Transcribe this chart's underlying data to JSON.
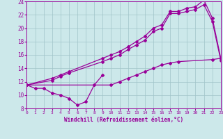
{
  "bg_color": "#cce8ea",
  "line_color": "#990099",
  "xlim": [
    0,
    23
  ],
  "ylim": [
    8,
    24
  ],
  "xticks": [
    0,
    1,
    2,
    3,
    4,
    5,
    6,
    7,
    8,
    9,
    10,
    11,
    12,
    13,
    14,
    15,
    16,
    17,
    18,
    19,
    20,
    21,
    22,
    23
  ],
  "yticks": [
    8,
    10,
    12,
    14,
    16,
    18,
    20,
    22,
    24
  ],
  "xlabel": "Windchill (Refroidissement éolien,°C)",
  "curve_dip_x": [
    0,
    1,
    2,
    3,
    4,
    5,
    6,
    7,
    8,
    9
  ],
  "curve_dip_y": [
    11.5,
    11.0,
    11.0,
    10.3,
    10.0,
    9.5,
    8.5,
    9.0,
    11.5,
    13.0
  ],
  "curve_top_x": [
    0,
    3,
    4,
    5,
    9,
    10,
    11,
    12,
    13,
    14,
    15,
    16,
    17,
    18,
    19,
    20,
    21,
    22,
    23
  ],
  "curve_top_y": [
    11.5,
    12.5,
    13.0,
    13.5,
    15.5,
    16.0,
    16.5,
    17.2,
    18.0,
    18.8,
    20.0,
    20.5,
    22.5,
    22.5,
    23.0,
    23.2,
    24.2,
    21.5,
    15.5
  ],
  "curve_mid_x": [
    0,
    3,
    4,
    5,
    9,
    10,
    11,
    12,
    13,
    14,
    15,
    16,
    17,
    18,
    19,
    20,
    21,
    22,
    23
  ],
  "curve_mid_y": [
    11.5,
    12.2,
    12.8,
    13.3,
    15.0,
    15.5,
    16.0,
    16.8,
    17.5,
    18.2,
    19.5,
    20.0,
    22.2,
    22.2,
    22.5,
    22.8,
    23.5,
    21.0,
    15.2
  ],
  "curve_low_x": [
    0,
    10,
    11,
    12,
    13,
    14,
    15,
    16,
    17,
    18,
    22,
    23
  ],
  "curve_low_y": [
    11.5,
    11.5,
    12.0,
    12.5,
    13.0,
    13.5,
    14.0,
    14.5,
    14.8,
    15.0,
    15.3,
    15.5
  ]
}
